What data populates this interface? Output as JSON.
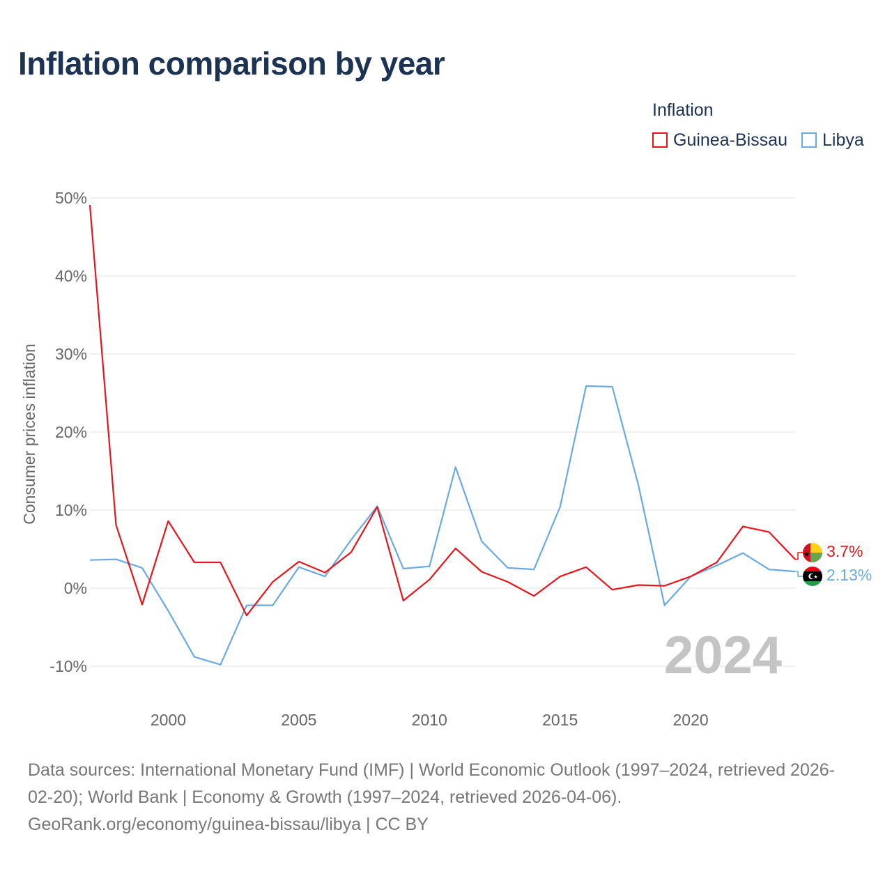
{
  "title": "Inflation comparison by year",
  "legend": {
    "title": "Inflation",
    "items": [
      {
        "label": "Guinea-Bissau",
        "color": "#e8141c"
      },
      {
        "label": "Libya",
        "color": "#6aa9e1"
      }
    ]
  },
  "watermark_year": "2024",
  "source": {
    "line1": "Data sources: International Monetary Fund (IMF) | World Economic Outlook (1997–2024, retrieved 2026-",
    "line2": "02-20); World Bank | Economy & Growth (1997–2024, retrieved 2026-04-06).",
    "line3": "GeoRank.org/economy/guinea-bissau/libya | CC BY"
  },
  "chart_data": {
    "type": "line",
    "title": "Inflation comparison by year",
    "xlabel": "",
    "ylabel": "Consumer prices inflation",
    "x": [
      1997,
      1998,
      1999,
      2000,
      2001,
      2002,
      2003,
      2004,
      2005,
      2006,
      2007,
      2008,
      2009,
      2010,
      2011,
      2012,
      2013,
      2014,
      2015,
      2016,
      2017,
      2018,
      2019,
      2020,
      2021,
      2022,
      2023,
      2024
    ],
    "xlim": [
      1997,
      2024
    ],
    "ylim": [
      -15,
      50
    ],
    "y_ticks": [
      -10,
      0,
      10,
      20,
      30,
      40,
      50
    ],
    "y_tick_labels": [
      "-10%",
      "0%",
      "10%",
      "20%",
      "30%",
      "40%",
      "50%"
    ],
    "x_ticks": [
      2000,
      2005,
      2010,
      2015,
      2020
    ],
    "x_tick_labels": [
      "2000",
      "2005",
      "2010",
      "2015",
      "2020"
    ],
    "grid": true,
    "legend_position": "top-right",
    "series": [
      {
        "name": "Guinea-Bissau",
        "color": "#e8141c",
        "values": [
          49.1,
          8.1,
          -2.1,
          8.6,
          3.3,
          3.3,
          -3.5,
          0.8,
          3.4,
          2.0,
          4.6,
          10.4,
          -1.6,
          1.1,
          5.1,
          2.1,
          0.8,
          -1.0,
          1.5,
          2.7,
          -0.2,
          0.4,
          0.3,
          1.5,
          3.3,
          7.9,
          7.2,
          3.7
        ],
        "end_label": "3.7%"
      },
      {
        "name": "Libya",
        "color": "#6aa9e1",
        "values": [
          3.6,
          3.7,
          2.6,
          -2.9,
          -8.8,
          -9.8,
          -2.2,
          -2.2,
          2.7,
          1.5,
          6.2,
          10.5,
          2.5,
          2.8,
          15.5,
          6.0,
          2.6,
          2.4,
          10.4,
          25.9,
          25.8,
          13.2,
          -2.2,
          1.5,
          2.9,
          4.5,
          2.4,
          2.13
        ],
        "end_label": "2.13%"
      }
    ]
  }
}
